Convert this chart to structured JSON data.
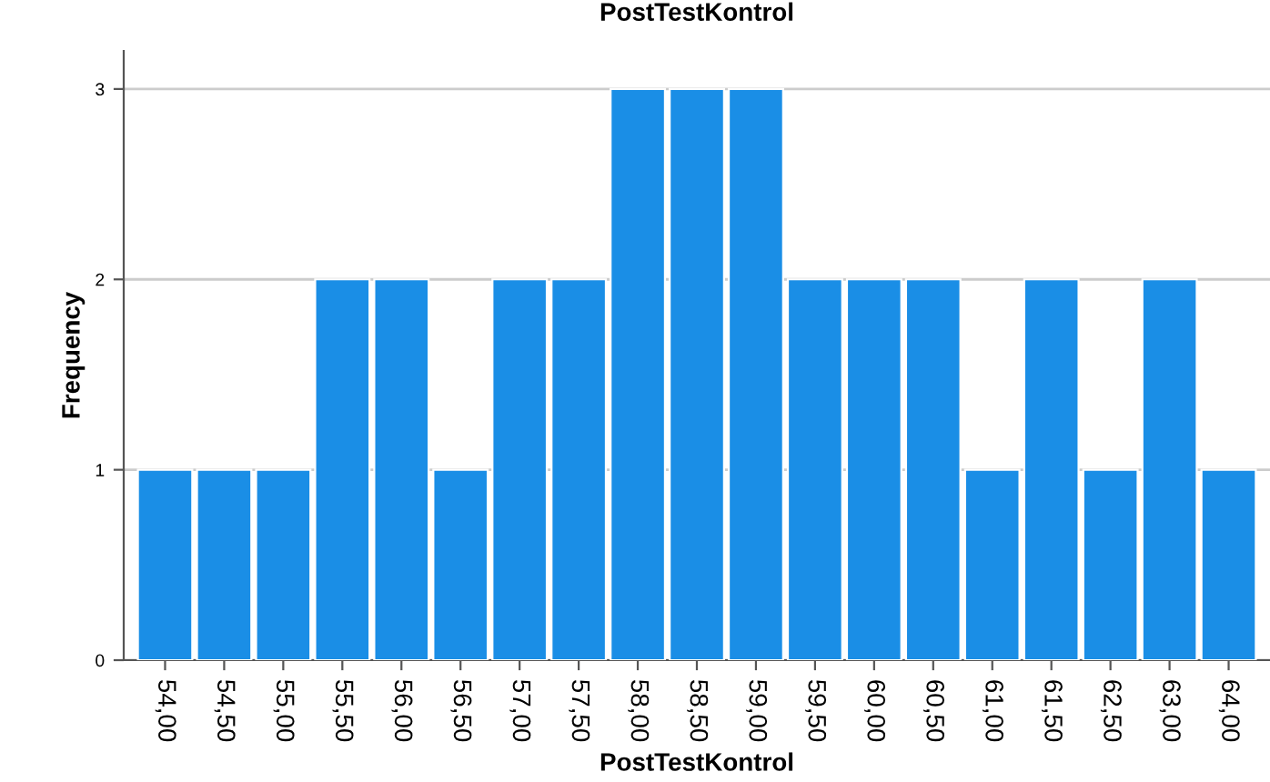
{
  "chart_data": {
    "type": "bar",
    "title": "PostTestKontrol",
    "xlabel": "PostTestKontrol",
    "ylabel": "Frequency",
    "categories": [
      "54,00",
      "54,50",
      "55,00",
      "55,50",
      "56,00",
      "56,50",
      "57,00",
      "57,50",
      "58,00",
      "58,50",
      "59,00",
      "59,50",
      "60,00",
      "60,50",
      "61,00",
      "61,50",
      "62,50",
      "63,00",
      "64,00"
    ],
    "values": [
      1,
      1,
      1,
      2,
      2,
      1,
      2,
      2,
      3,
      3,
      3,
      2,
      2,
      2,
      1,
      2,
      1,
      2,
      1
    ],
    "color": "#1a8ee6",
    "ylim": [
      0,
      3.2
    ],
    "yticks": [
      0,
      1,
      2,
      3
    ],
    "grid": "y"
  }
}
